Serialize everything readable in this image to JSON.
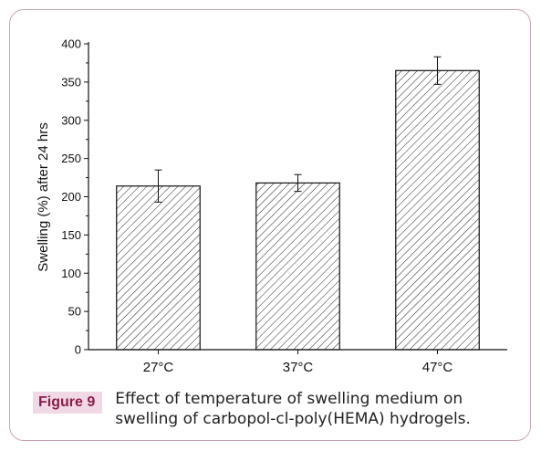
{
  "figure": {
    "label": "Figure 9",
    "caption": "Effect of temperature of swelling medium on swelling of carbopol-cl-poly(HEMA) hydrogels."
  },
  "chart_data": {
    "type": "bar",
    "categories": [
      "27°C",
      "37°C",
      "47°C"
    ],
    "values": [
      214,
      218,
      365
    ],
    "errors": [
      21,
      11,
      18
    ],
    "ylabel": "Swelling (%) after 24 hrs",
    "xlabel": "",
    "ylim": [
      0,
      400
    ],
    "yticks": [
      0,
      50,
      100,
      150,
      200,
      250,
      300,
      350,
      400
    ],
    "bar_fill": "hatched",
    "grid": false
  },
  "colors": {
    "frame_border": "#c9a4b8",
    "label_bg": "#f0d9e4",
    "label_text": "#8b1c4e"
  }
}
